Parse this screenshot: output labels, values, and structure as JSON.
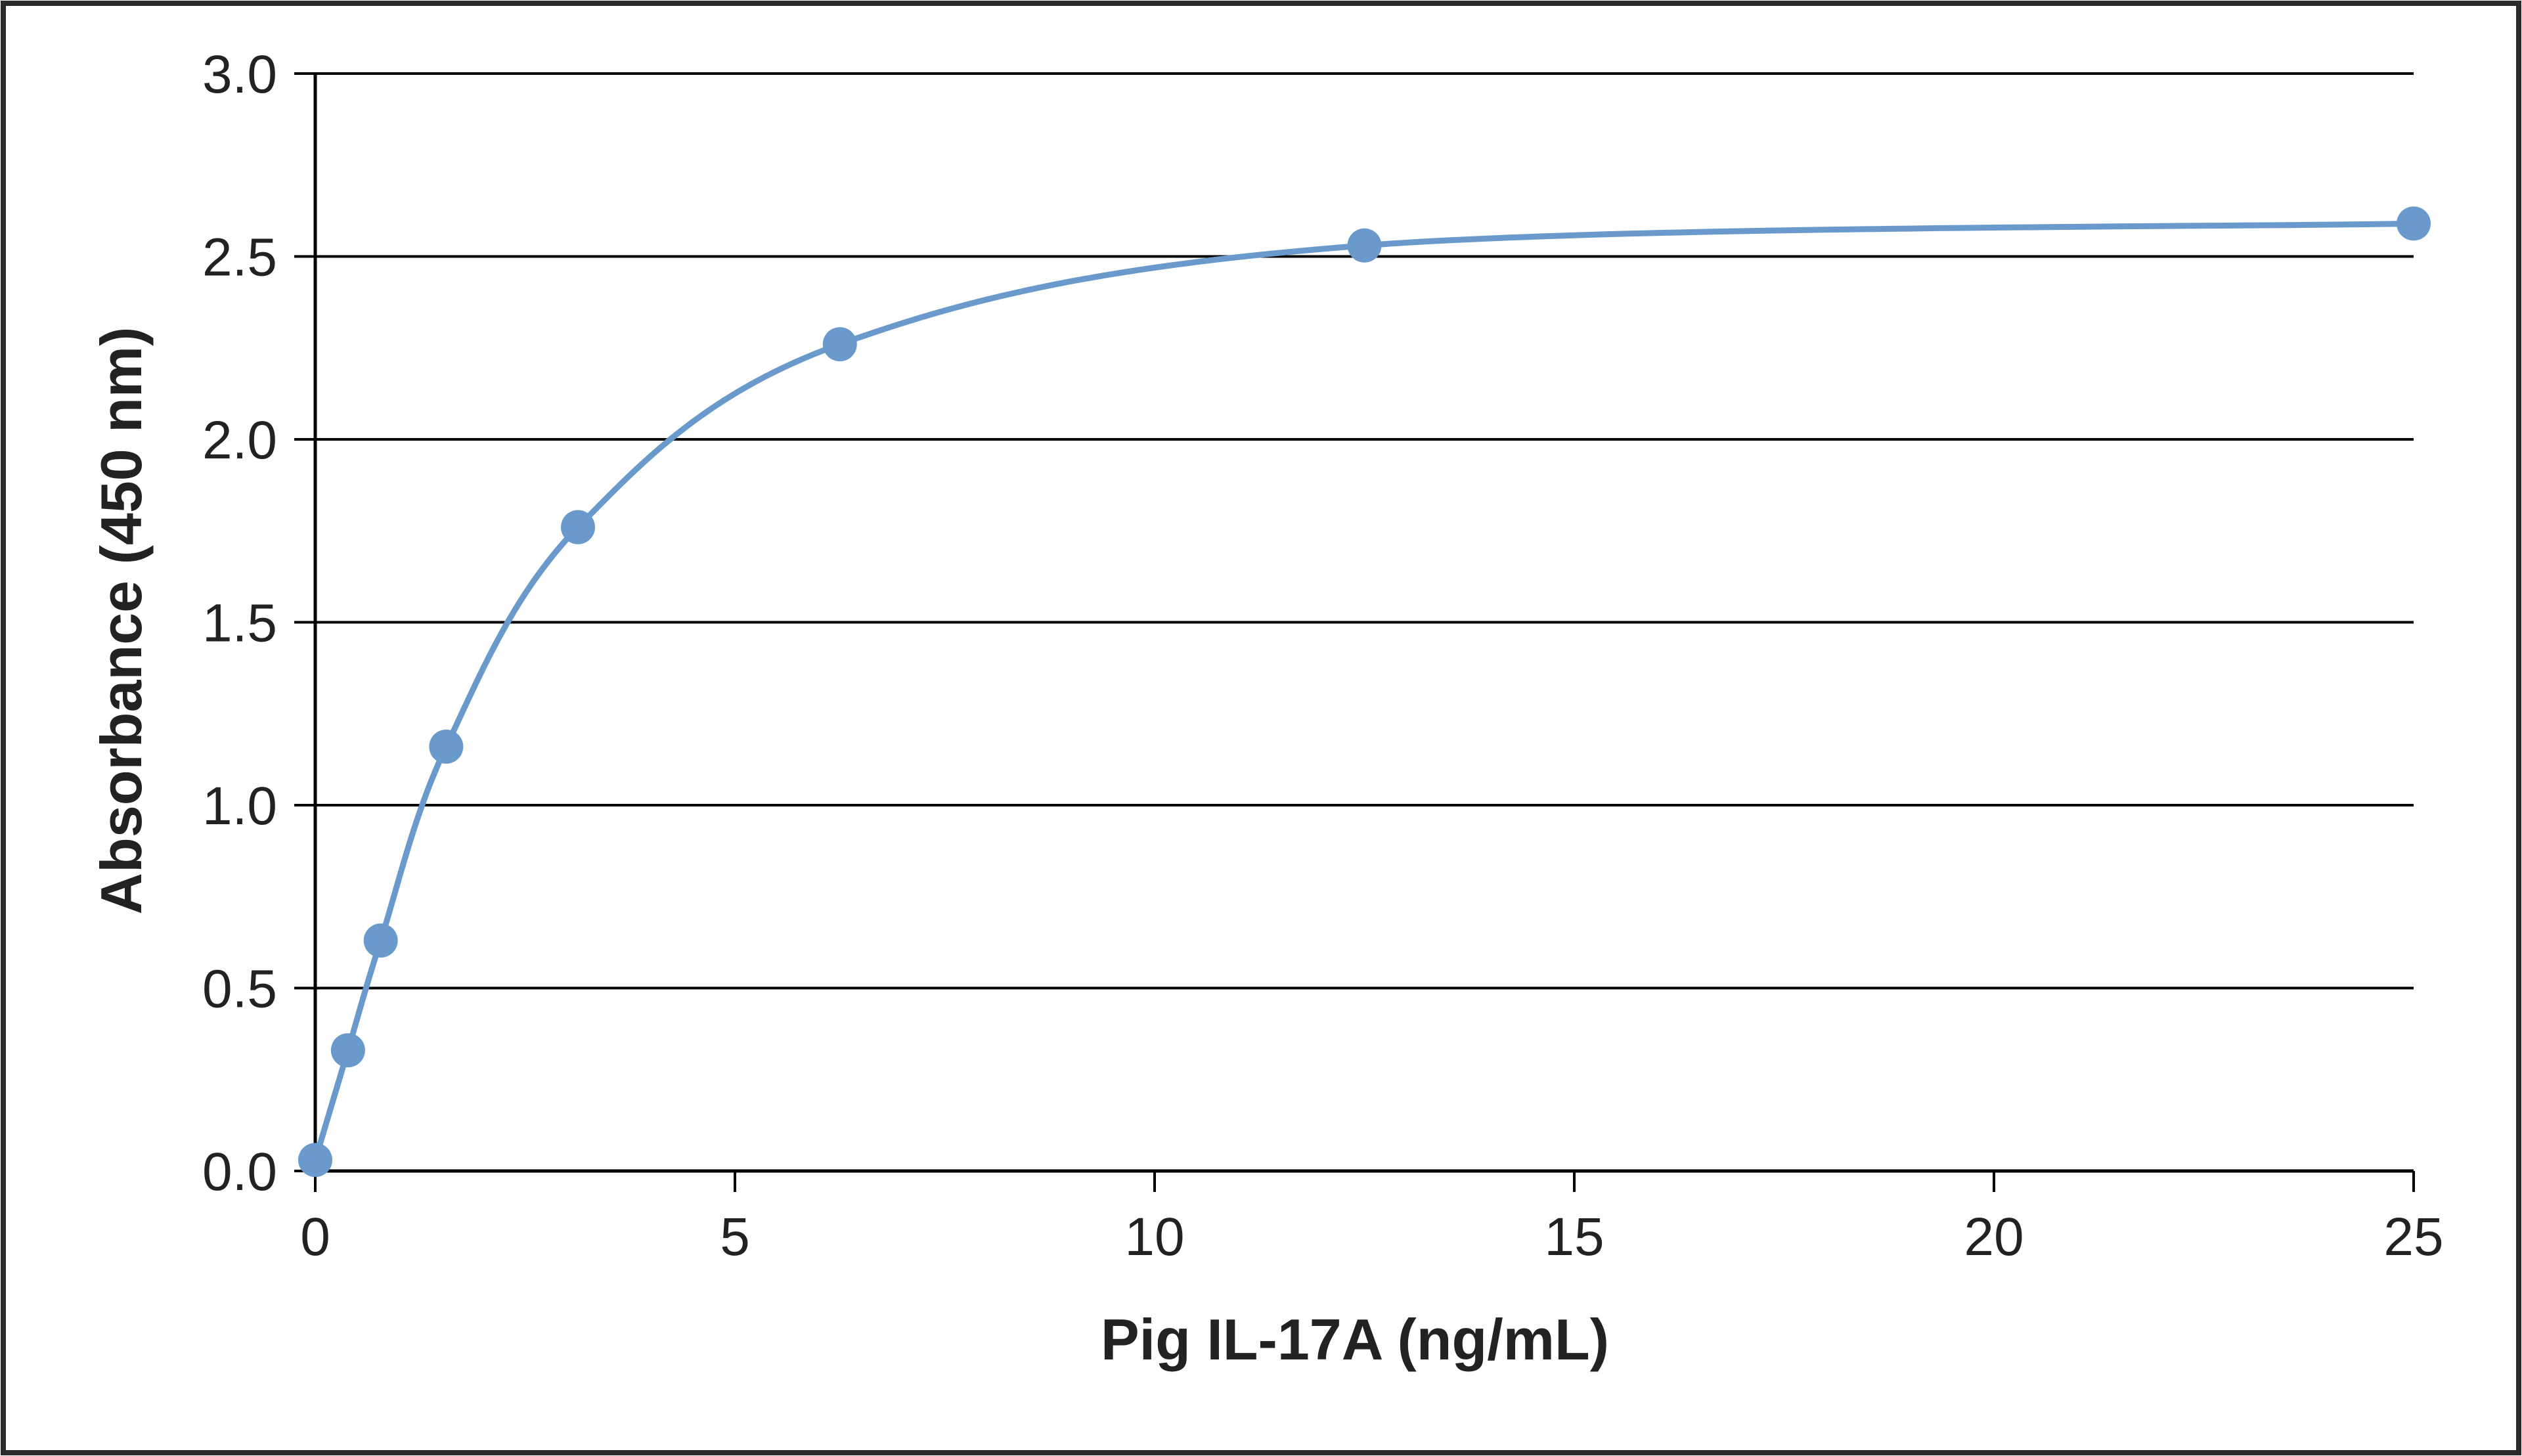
{
  "chart_data": {
    "type": "scatter",
    "title": "",
    "xlabel": "Pig IL-17A  (ng/mL)",
    "ylabel": "Absorbance  (450  nm)",
    "xlim": [
      0,
      25
    ],
    "ylim": [
      0,
      3.0
    ],
    "x_ticks": [
      "0",
      "5",
      "10",
      "15",
      "20",
      "25"
    ],
    "y_ticks": [
      "0.0",
      "0.5",
      "1.0",
      "1.5",
      "2.0",
      "2.5",
      "3.0"
    ],
    "grid": "horizontal",
    "legend": "none",
    "series": [
      {
        "marker_color": "#6a9acb",
        "line": "smooth fitted curve",
        "x": [
          0,
          0.39,
          0.78,
          1.56,
          3.13,
          6.25,
          12.5,
          25
        ],
        "y": [
          0.03,
          0.33,
          0.63,
          1.16,
          1.76,
          2.26,
          2.53,
          2.59
        ]
      }
    ]
  }
}
